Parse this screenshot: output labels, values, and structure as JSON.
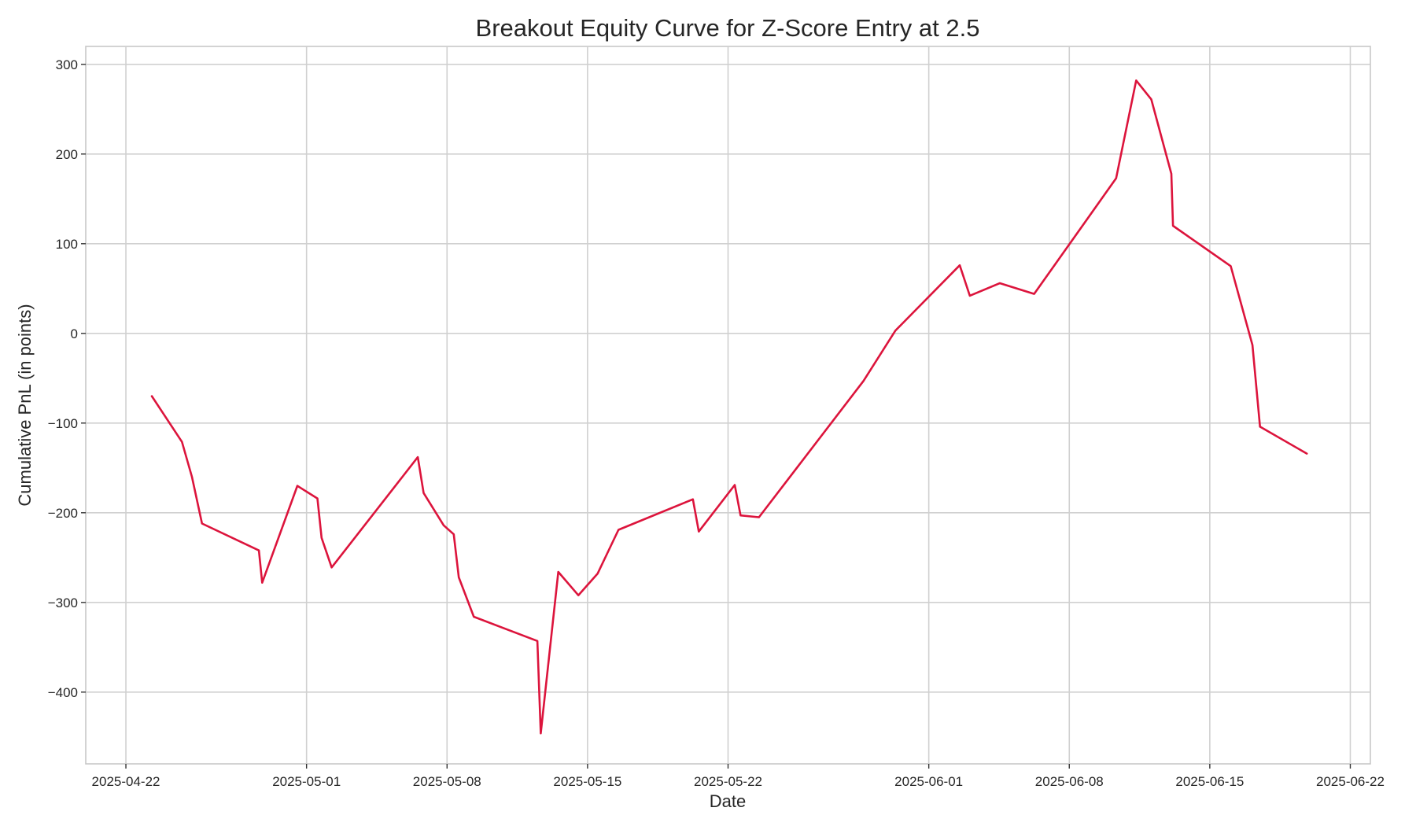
{
  "chart_data": {
    "type": "line",
    "title": "Breakout Equity Curve for Z-Score Entry at 2.5",
    "xlabel": "Date",
    "ylabel": "Cumulative PnL (in points)",
    "x_axis_type": "date",
    "xlim": [
      "2025-04-20",
      "2025-06-23"
    ],
    "ylim": [
      -480,
      320
    ],
    "x_ticks": [
      "2025-04-22",
      "2025-05-01",
      "2025-05-08",
      "2025-05-15",
      "2025-05-22",
      "2025-06-01",
      "2025-06-08",
      "2025-06-15",
      "2025-06-22"
    ],
    "y_ticks": [
      300,
      200,
      100,
      0,
      -100,
      -200,
      -300,
      -400
    ],
    "y_tick_labels": [
      "300",
      "200",
      "100",
      "0",
      "−100",
      "−200",
      "−300",
      "−400"
    ],
    "grid": true,
    "legend": "none",
    "colors": {
      "line": "#dc143c",
      "grid": "#d0d0d0",
      "frame": "#c8c8c8",
      "text": "#262626"
    },
    "series": [
      {
        "x": [
          "2025-04-23 07:00",
          "2025-04-24 19:00",
          "2025-04-25 07:00",
          "2025-04-25 19:00",
          "2025-04-28 15:00",
          "2025-04-28 19:00",
          "2025-04-30 13:00",
          "2025-05-01 13:00",
          "2025-05-01 18:00",
          "2025-05-02 06:00",
          "2025-05-06 13:00",
          "2025-05-06 20:00",
          "2025-05-07 20:00",
          "2025-05-08 08:00",
          "2025-05-08 14:00",
          "2025-05-09 08:00",
          "2025-05-12 12:00",
          "2025-05-12 16:00",
          "2025-05-13 13:00",
          "2025-05-14 13:00",
          "2025-05-15 12:00",
          "2025-05-16 13:00",
          "2025-05-20 06:00",
          "2025-05-20 13:00",
          "2025-05-22 08:00",
          "2025-05-22 15:00",
          "2025-05-23 13:00",
          "2025-05-28 18:00",
          "2025-05-30 08:00",
          "2025-06-02 13:00",
          "2025-06-03 01:00",
          "2025-06-04 13:00",
          "2025-06-06 06:00",
          "2025-06-10 08:00",
          "2025-06-11 08:00",
          "2025-06-12 02:00",
          "2025-06-13 02:00",
          "2025-06-13 04:00",
          "2025-06-16 01:00",
          "2025-06-17 03:00",
          "2025-06-17 12:00",
          "2025-06-19 20:00"
        ],
        "y": [
          -70,
          -121,
          -160,
          -212,
          -242,
          -278,
          -170,
          -184,
          -228,
          -261,
          -138,
          -178,
          -214,
          -224,
          -272,
          -316,
          -343,
          -446,
          -266,
          -292,
          -268,
          -219,
          -185,
          -221,
          -169,
          -203,
          -205,
          -53,
          3,
          76,
          42,
          56,
          44,
          173,
          282,
          261,
          178,
          120,
          75,
          -13,
          -104,
          -134
        ]
      }
    ]
  }
}
